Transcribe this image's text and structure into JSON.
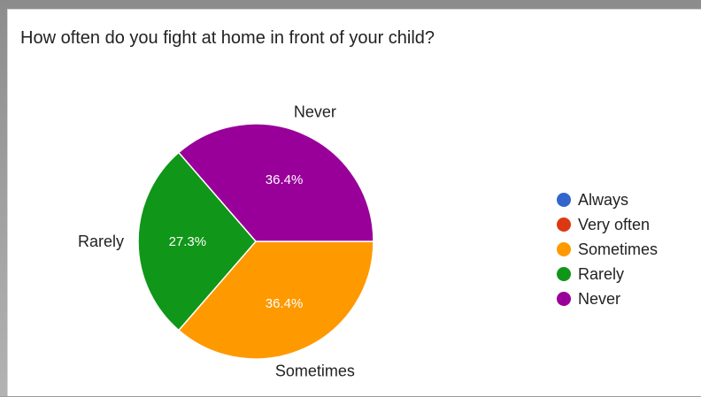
{
  "chart_data": {
    "type": "pie",
    "title": "How often do you fight at home in front of your child?",
    "categories": [
      "Always",
      "Very often",
      "Sometimes",
      "Rarely",
      "Never"
    ],
    "values": [
      0,
      0,
      36.4,
      27.3,
      36.4
    ],
    "slice_labels": [
      "",
      "",
      "36.4%",
      "27.3%",
      "36.4%"
    ],
    "colors": [
      "#3366cc",
      "#dc3912",
      "#ff9900",
      "#109618",
      "#990099"
    ],
    "legend": {
      "position": "right",
      "items": [
        "Always",
        "Very often",
        "Sometimes",
        "Rarely",
        "Never"
      ]
    }
  }
}
